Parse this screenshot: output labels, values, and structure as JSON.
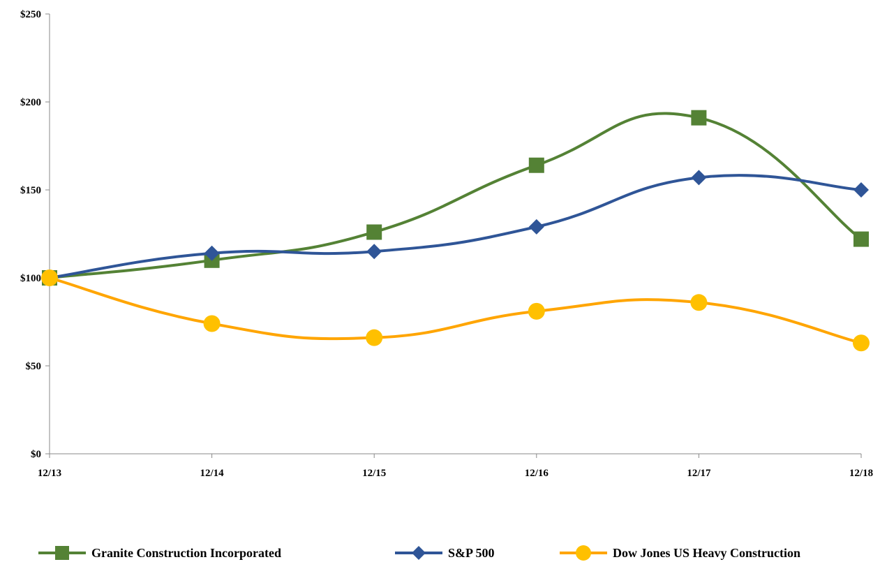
{
  "chart_data": {
    "type": "line",
    "categories": [
      "12/13",
      "12/14",
      "12/15",
      "12/16",
      "12/17",
      "12/18"
    ],
    "y_tick_labels": [
      "$0",
      "$50",
      "$100",
      "$150",
      "$200",
      "$250"
    ],
    "ylim": [
      0,
      250
    ],
    "grid": false,
    "legend_position": "bottom",
    "series": [
      {
        "name": "Granite Construction Incorporated",
        "color": "#548235",
        "marker": "square",
        "values": [
          100,
          110,
          126,
          164,
          191,
          122
        ]
      },
      {
        "name": "S&P 500",
        "color": "#2f5597",
        "marker": "diamond",
        "values": [
          100,
          114,
          115,
          129,
          157,
          150
        ]
      },
      {
        "name": "Dow Jones US Heavy Construction",
        "color": "#ffa500",
        "marker": "circle",
        "values": [
          100,
          74,
          66,
          81,
          86,
          63
        ]
      }
    ]
  }
}
